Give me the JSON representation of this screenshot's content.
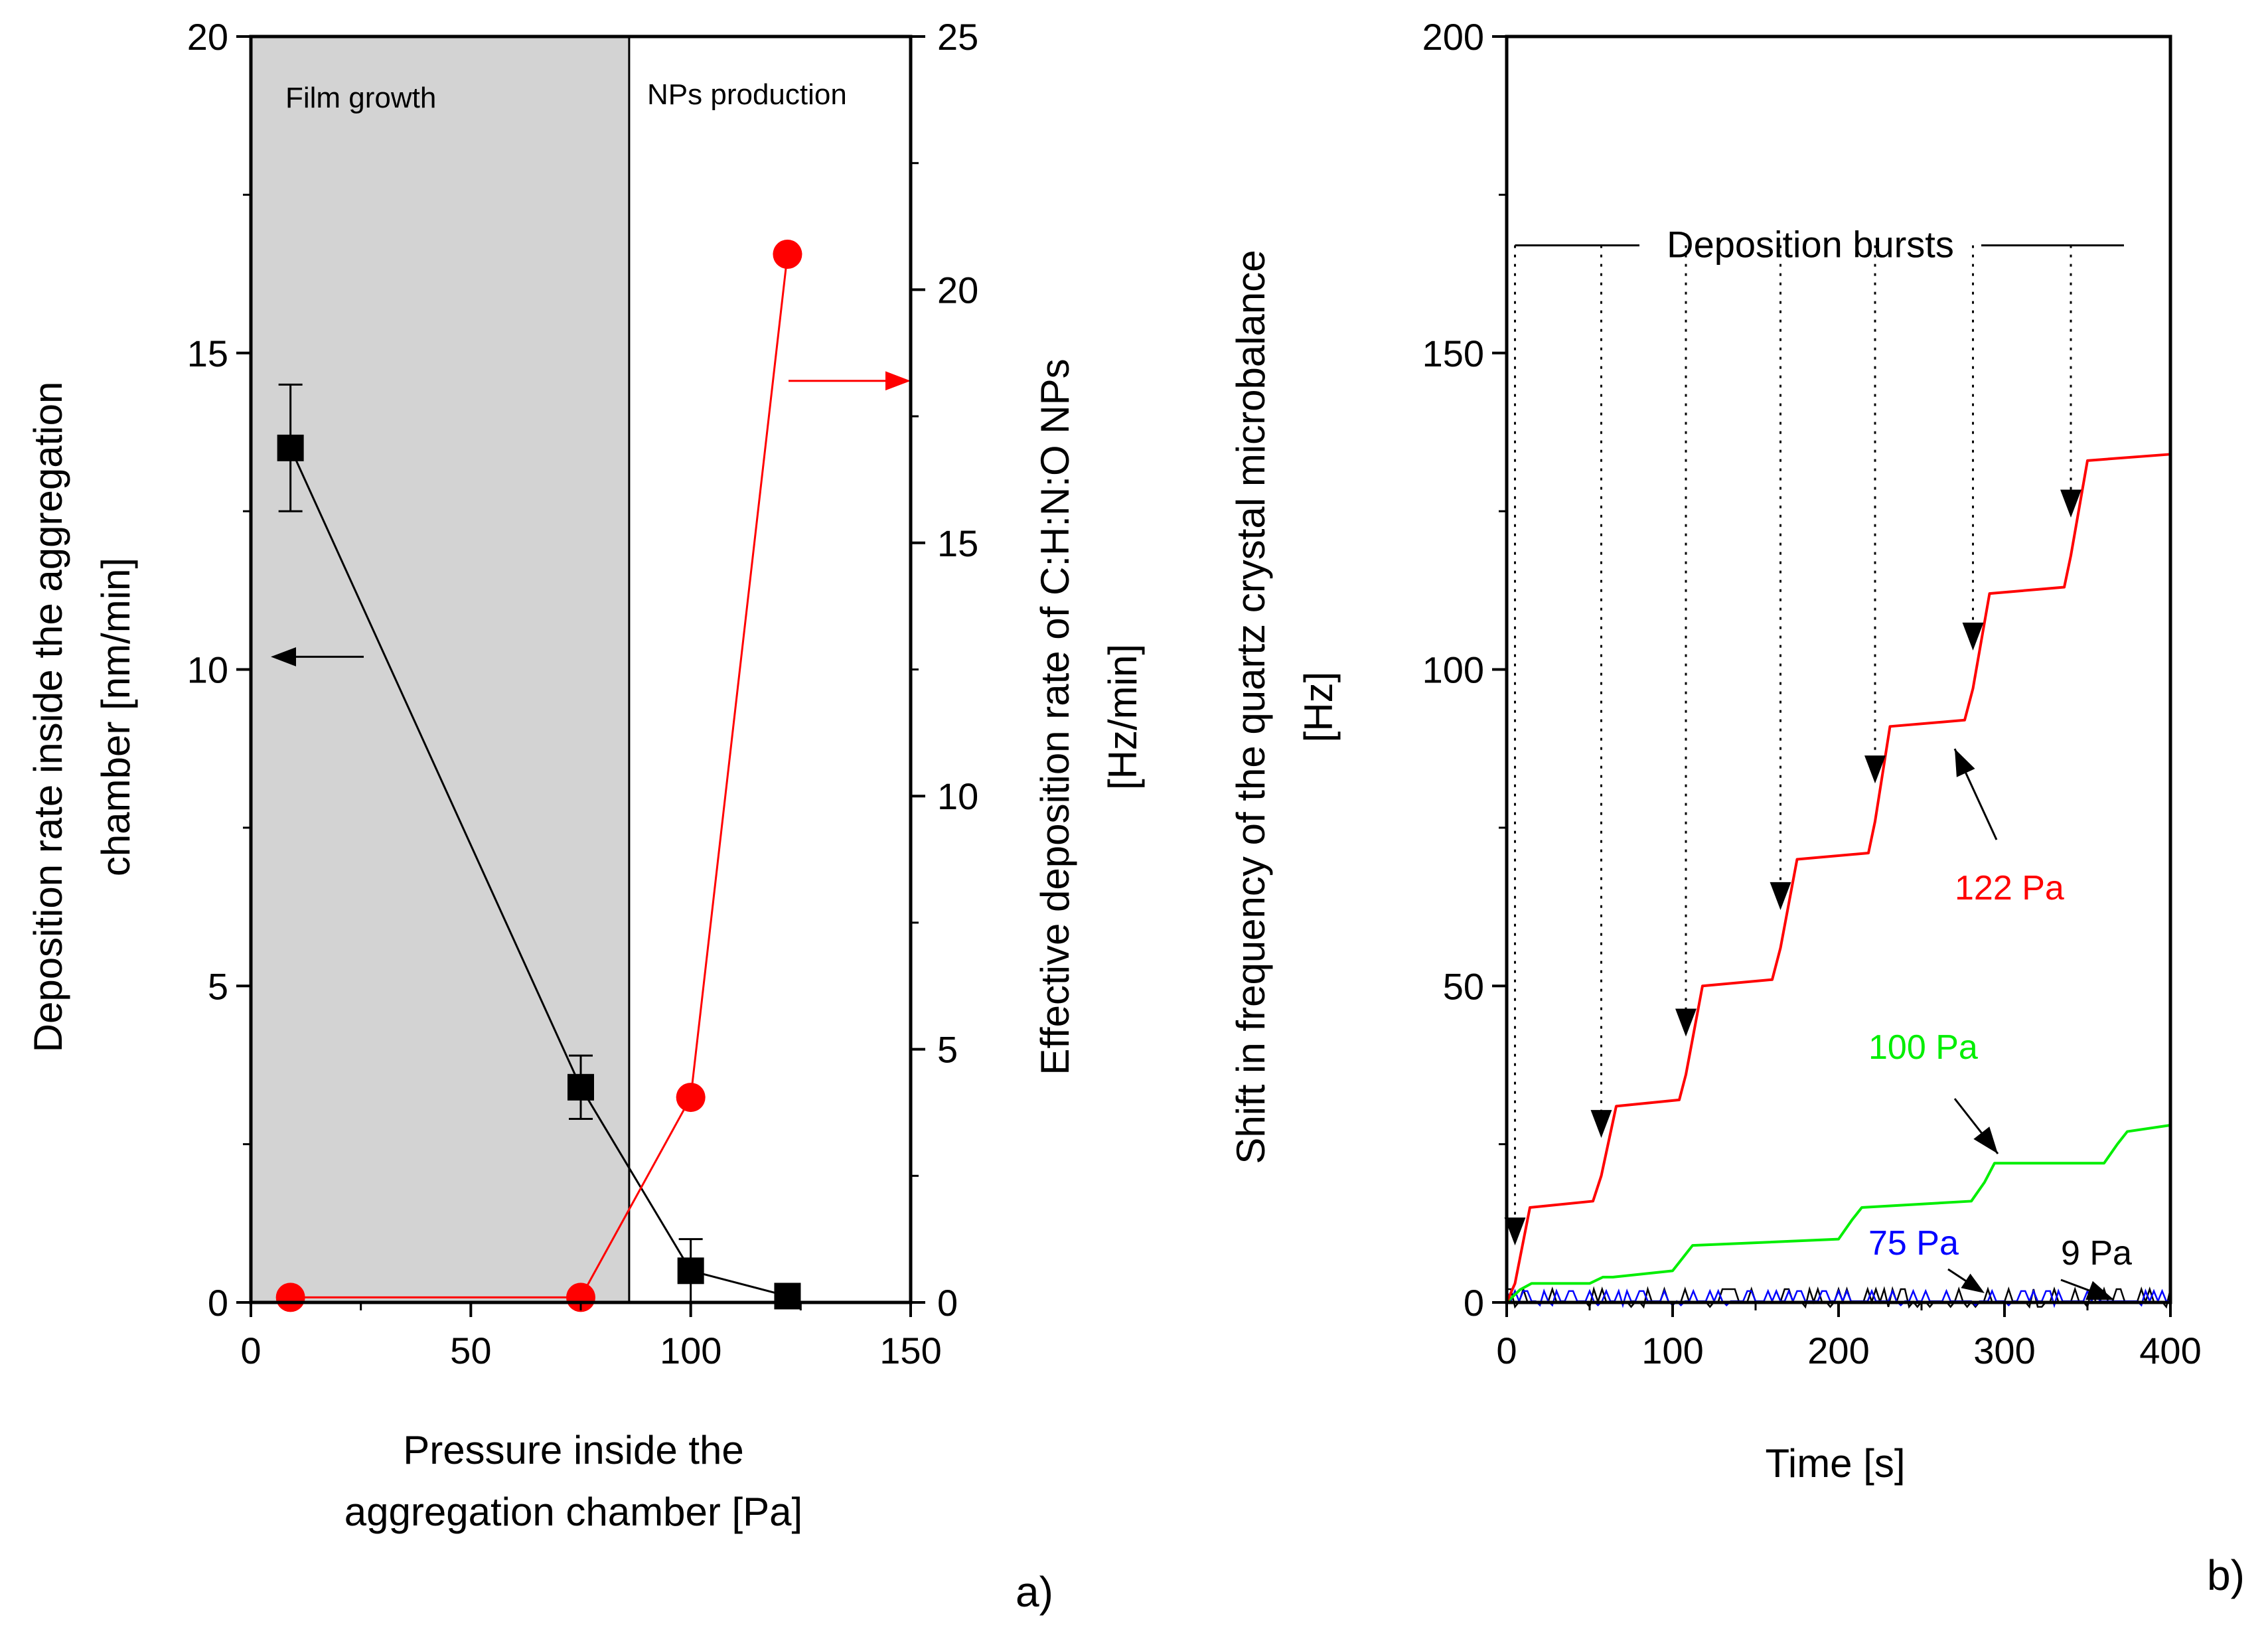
{
  "chart_data": [
    {
      "type": "scatter",
      "panel_label": "a)",
      "xlabel_lines": [
        "Pressure inside the",
        "aggregation chamber [Pa]"
      ],
      "ylabel_left_lines": [
        "Deposition rate inside the aggregation",
        "chamber [nm/min]"
      ],
      "ylabel_right_lines": [
        "Effective deposition rate of C:H:N:O NPs",
        "[Hz/min]"
      ],
      "xlim": [
        0,
        150
      ],
      "ylim_left": [
        0,
        20
      ],
      "ylim_right": [
        0,
        25
      ],
      "x_ticks": [
        0,
        50,
        100,
        150
      ],
      "y_left_ticks": [
        0,
        5,
        10,
        15,
        20
      ],
      "y_right_ticks": [
        0,
        5,
        10,
        15,
        20,
        25
      ],
      "regions": [
        {
          "label": "Film growth",
          "x_start": 0,
          "x_end": 86,
          "color": "#d3d3d3"
        },
        {
          "label": "NPs production",
          "x_start": 86,
          "x_end": 150,
          "color": "#ffffff"
        }
      ],
      "series": [
        {
          "axis": "left",
          "color": "#000000",
          "marker": "square",
          "x": [
            9,
            75,
            100,
            122
          ],
          "y": [
            13.5,
            3.4,
            0.5,
            0.1
          ],
          "err": [
            1.0,
            0.5,
            0.5,
            0
          ]
        },
        {
          "axis": "right",
          "color": "#ff0000",
          "marker": "circle",
          "x": [
            9,
            75,
            100,
            122
          ],
          "y": [
            0.1,
            0.1,
            4.05,
            20.7
          ]
        }
      ]
    },
    {
      "type": "line",
      "panel_label": "b)",
      "xlabel": "Time [s]",
      "ylabel_lines": [
        "Shift in frequency  of the quartz crystal microbalance",
        "[Hz]"
      ],
      "xlim": [
        0,
        400
      ],
      "ylim": [
        0,
        200
      ],
      "x_ticks": [
        0,
        100,
        200,
        300,
        400
      ],
      "y_ticks": [
        0,
        50,
        100,
        150,
        200
      ],
      "annotation": "Deposition bursts",
      "burst_times": [
        5,
        57,
        108,
        165,
        222,
        281,
        340
      ],
      "series": [
        {
          "name": "122 Pa",
          "color": "#ff0000",
          "x": [
            0,
            5,
            14,
            52,
            57,
            66,
            104,
            108,
            118,
            160,
            165,
            175,
            218,
            222,
            231,
            276,
            281,
            291,
            336,
            340,
            350,
            400
          ],
          "y": [
            0,
            3,
            15,
            16,
            20,
            31,
            32,
            36,
            50,
            51,
            56,
            70,
            71,
            76,
            91,
            92,
            97,
            112,
            113,
            118,
            133,
            134
          ]
        },
        {
          "name": "100 Pa",
          "color": "#00ee00",
          "x": [
            0,
            8,
            15,
            50,
            58,
            64,
            100,
            106,
            112,
            200,
            208,
            214,
            280,
            288,
            294,
            360,
            368,
            374,
            400
          ],
          "y": [
            0,
            2,
            3,
            3,
            4,
            4,
            5,
            7,
            9,
            10,
            13,
            15,
            16,
            19,
            22,
            22,
            25,
            27,
            28
          ]
        },
        {
          "name": "75 Pa",
          "color": "#0000ff",
          "x": [
            0,
            400
          ],
          "y": [
            0.2,
            0.5
          ]
        },
        {
          "name": "9 Pa",
          "color": "#000000",
          "x": [
            0,
            400
          ],
          "y": [
            0.1,
            0.3
          ]
        }
      ]
    }
  ]
}
